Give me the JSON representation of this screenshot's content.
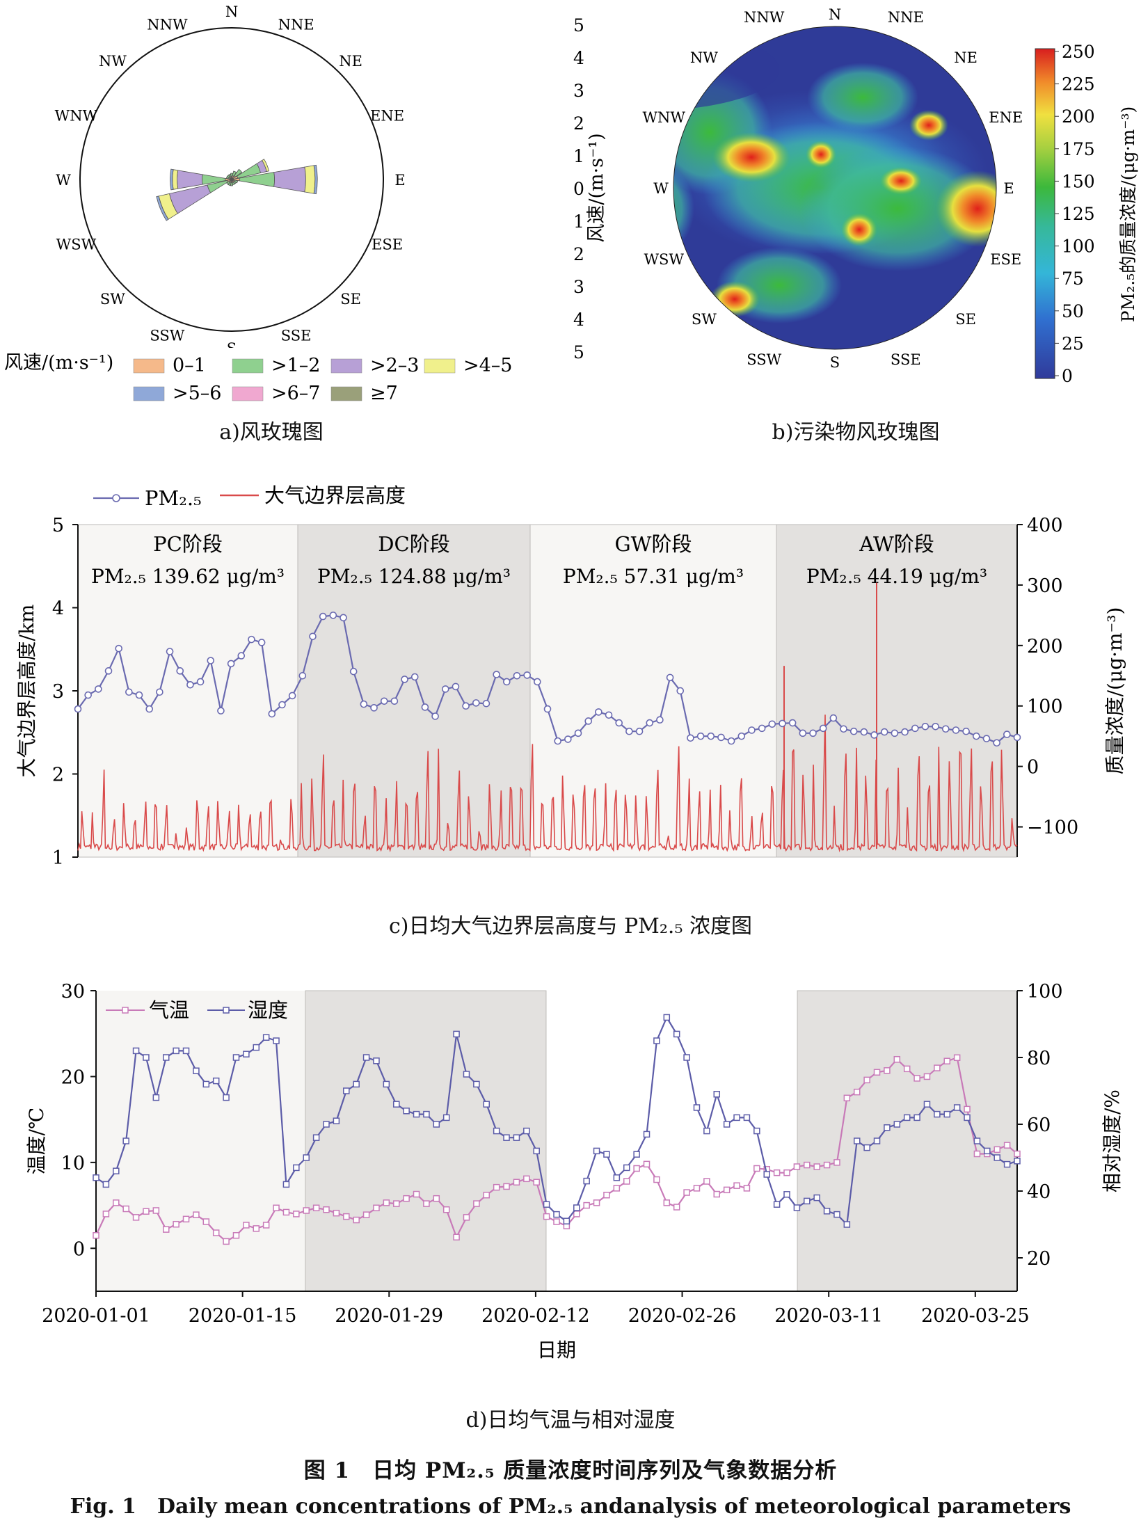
{
  "panel_a": {
    "caption": "a)风玫瑰图",
    "directions": [
      "N",
      "NNE",
      "NE",
      "ENE",
      "E",
      "ESE",
      "SE",
      "SSE",
      "S",
      "SSW",
      "SW",
      "WSW",
      "W",
      "WNW",
      "NW",
      "NNW"
    ],
    "legend_title": "风速/(m·s⁻¹)",
    "legend_items": [
      {
        "label": "0–1",
        "color": "#f5b98a"
      },
      {
        "label": ">1–2",
        "color": "#8fd08f"
      },
      {
        "label": ">2–3",
        "color": "#b7a0d6"
      },
      {
        "label": ">4–5",
        "color": "#f0f08c"
      },
      {
        "label": ">5–6",
        "color": "#8fa8d8"
      },
      {
        "label": ">6–7",
        "color": "#f0a8d0"
      },
      {
        "label": "≥7",
        "color": "#9aa07a"
      }
    ]
  },
  "panel_b": {
    "caption": "b)污染物风玫瑰图",
    "y_label": "风速/(m·s⁻¹)",
    "radial_ticks": [
      "5",
      "4",
      "3",
      "2",
      "1",
      "0",
      "1",
      "2",
      "3",
      "4",
      "5"
    ],
    "directions": [
      "N",
      "NNE",
      "NE",
      "ENE",
      "E",
      "ESE",
      "SE",
      "SSE",
      "S",
      "SSW",
      "SW",
      "WSW",
      "W",
      "WNW",
      "NW",
      "NNW"
    ],
    "colorbar_label": "PM₂.₅的质量浓度/(μg·m⁻³)",
    "colorbar_ticks": [
      "250",
      "225",
      "200",
      "175",
      "150",
      "125",
      "100",
      "75",
      "50",
      "25",
      "0"
    ]
  },
  "chart_data": [
    {
      "type": "line",
      "id": "c",
      "legend": [
        "PM₂.₅",
        "大气边界层高度"
      ],
      "ylabel_left": "大气边界层高度/km",
      "ylabel_right": "质量浓度/(μg·m⁻³)",
      "y_left_ticks": [
        "5",
        "4",
        "3",
        "2",
        "1"
      ],
      "y_right_ticks": [
        "400",
        "300",
        "200",
        "100",
        "0",
        "−100"
      ],
      "ylim_left": [
        1,
        5
      ],
      "ylim_right": [
        -150,
        400
      ],
      "phases": [
        {
          "name": "PC阶段",
          "label": "PM₂.₅ 139.62 μg/m³",
          "shaded": false
        },
        {
          "name": "DC阶段",
          "label": "PM₂.₅ 124.88 μg/m³",
          "shaded": true
        },
        {
          "name": "GW阶段",
          "label": "PM₂.₅ 57.31 μg/m³",
          "shaded": false
        },
        {
          "name": "AW阶段",
          "label": "PM₂.₅ 44.19 μg/m³",
          "shaded": true
        }
      ],
      "series": [
        {
          "name": "PM₂.₅",
          "color": "#6a6ab0",
          "values": [
            95,
            118,
            128,
            158,
            195,
            123,
            118,
            95,
            123,
            190,
            158,
            135,
            140,
            175,
            92,
            170,
            183,
            210,
            205,
            87,
            102,
            117,
            150,
            215,
            248,
            250,
            246,
            157,
            103,
            97,
            108,
            108,
            144,
            148,
            98,
            83,
            128,
            132,
            100,
            105,
            104,
            152,
            140,
            150,
            151,
            140,
            95,
            42,
            45,
            55,
            75,
            90,
            85,
            72,
            58,
            58,
            72,
            77,
            147,
            125,
            47,
            50,
            50,
            48,
            42,
            50,
            60,
            63,
            70,
            71,
            72,
            55,
            55,
            63,
            80,
            62,
            58,
            57,
            52,
            57,
            55,
            57,
            63,
            66,
            66,
            62,
            60,
            58,
            50,
            46,
            39,
            53,
            48
          ]
        },
        {
          "name": "大气边界层高度",
          "color": "#d94a4a",
          "values": []
        }
      ]
    },
    {
      "type": "line",
      "id": "d",
      "legend": [
        "气温",
        "湿度"
      ],
      "xlabel": "日期",
      "ylabel_left": "温度/℃",
      "ylabel_right": "相对湿度/%",
      "x_ticks": [
        "2020-01-01",
        "2020-01-15",
        "2020-01-29",
        "2020-02-12",
        "2020-02-26",
        "2020-03-11",
        "2020-03-25"
      ],
      "y_left_ticks": [
        "30",
        "20",
        "10",
        "0"
      ],
      "y_right_ticks": [
        "100",
        "80",
        "60",
        "40",
        "20"
      ],
      "ylim_left": [
        -5,
        30
      ],
      "ylim_right": [
        10,
        100
      ],
      "x_range": [
        "2020-01-01",
        "2020-03-29"
      ],
      "shaded_ranges": [
        [
          "2020-01-21",
          "2020-02-13"
        ],
        [
          "2020-03-08",
          "2020-03-29"
        ]
      ],
      "series": [
        {
          "name": "气温",
          "color": "#c87ab8",
          "values": [
            1.5,
            4.0,
            5.3,
            4.6,
            3.6,
            4.3,
            4.4,
            2.2,
            2.8,
            3.4,
            3.9,
            3.1,
            1.8,
            0.8,
            1.5,
            2.7,
            2.3,
            2.7,
            4.7,
            4.2,
            4.0,
            4.4,
            4.7,
            4.5,
            4.1,
            3.7,
            3.3,
            3.9,
            4.7,
            5.3,
            5.2,
            5.8,
            6.3,
            5.2,
            5.8,
            4.5,
            1.3,
            3.6,
            5.2,
            6.2,
            7.1,
            7.2,
            7.7,
            8.1,
            7.7,
            3.7,
            3.1,
            2.6,
            4.0,
            5.0,
            5.3,
            6.2,
            7.0,
            7.8,
            9.3,
            9.8,
            8.0,
            5.3,
            4.8,
            6.5,
            7.0,
            7.8,
            6.3,
            6.8,
            7.3,
            7.0,
            9.3,
            9.2,
            8.8,
            8.8,
            9.5,
            9.7,
            9.5,
            9.7,
            10.0,
            17.5,
            18.2,
            19.6,
            20.5,
            20.7,
            22.0,
            20.9,
            19.8,
            20.0,
            21.0,
            21.8,
            22.2,
            16.2,
            11.0,
            11.0,
            11.5,
            12.0,
            11.0
          ]
        },
        {
          "name": "湿度",
          "color": "#5c5ca8",
          "values": [
            44,
            42,
            46,
            55,
            82,
            80,
            68,
            80,
            82,
            82,
            76,
            72,
            73,
            68,
            80,
            81,
            83,
            86,
            85,
            42,
            47,
            50,
            56,
            60,
            61,
            70,
            72,
            80,
            79,
            72,
            66,
            64,
            63,
            63,
            60,
            62,
            87,
            75,
            72,
            66,
            58,
            56,
            56,
            58,
            52,
            36,
            33,
            31,
            35,
            43,
            52,
            51,
            44,
            47,
            51,
            57,
            85,
            92,
            87,
            80,
            65,
            58,
            69,
            60,
            62,
            62,
            58,
            45,
            36,
            39,
            35,
            37,
            38,
            34,
            33,
            30,
            55,
            53,
            55,
            59,
            60,
            62,
            62,
            66,
            63,
            63,
            65,
            62,
            55,
            52,
            50,
            48,
            49
          ]
        }
      ]
    }
  ],
  "captions": {
    "c": "c)日均大气边界层高度与 PM₂.₅ 浓度图",
    "d": "d)日均气温与相对湿度",
    "figure_cn": "图 1　日均 PM₂.₅ 质量浓度时间序列及气象数据分析",
    "figure_en": "Fig. 1　Daily mean concentrations of PM₂.₅ andanalysis of meteorological parameters"
  }
}
